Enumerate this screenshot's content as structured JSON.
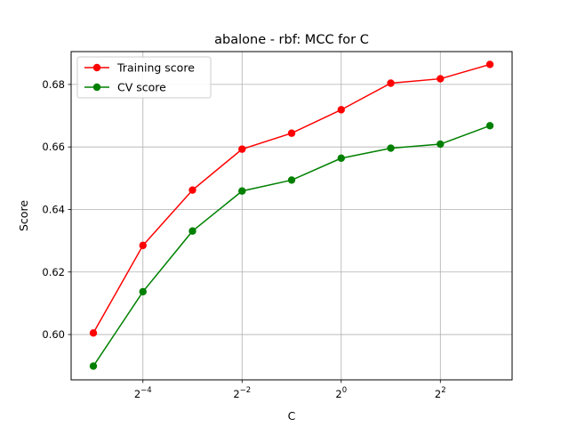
{
  "chart_data": {
    "type": "line",
    "title": "abalone - rbf: MCC for C",
    "xlabel": "C",
    "ylabel": "Score",
    "x_scale": "log2",
    "x": [
      0.03125,
      0.0625,
      0.125,
      0.25,
      0.5,
      1,
      2,
      4,
      8
    ],
    "xlim": [
      0.0229,
      10.91
    ],
    "ylim": [
      0.5855,
      0.6905
    ],
    "x_ticks": [
      {
        "value": 0.0625,
        "base": "2",
        "exp": "−4"
      },
      {
        "value": 0.25,
        "base": "2",
        "exp": "−2"
      },
      {
        "value": 1,
        "base": "2",
        "exp": "0"
      },
      {
        "value": 4,
        "base": "2",
        "exp": "2"
      }
    ],
    "y_ticks": [
      {
        "value": 0.6,
        "label": "0.60"
      },
      {
        "value": 0.62,
        "label": "0.62"
      },
      {
        "value": 0.64,
        "label": "0.64"
      },
      {
        "value": 0.66,
        "label": "0.66"
      },
      {
        "value": 0.68,
        "label": "0.68"
      }
    ],
    "grid": true,
    "legend_position": "top-left",
    "series": [
      {
        "name": "Training score",
        "color": "#ff0000",
        "values": [
          0.6005,
          0.6285,
          0.6462,
          0.6593,
          0.6644,
          0.6719,
          0.6804,
          0.6818,
          0.6864
        ]
      },
      {
        "name": "CV score",
        "color": "#008000",
        "values": [
          0.5899,
          0.6137,
          0.6331,
          0.6459,
          0.6494,
          0.6564,
          0.6596,
          0.6609,
          0.6668
        ]
      }
    ]
  }
}
